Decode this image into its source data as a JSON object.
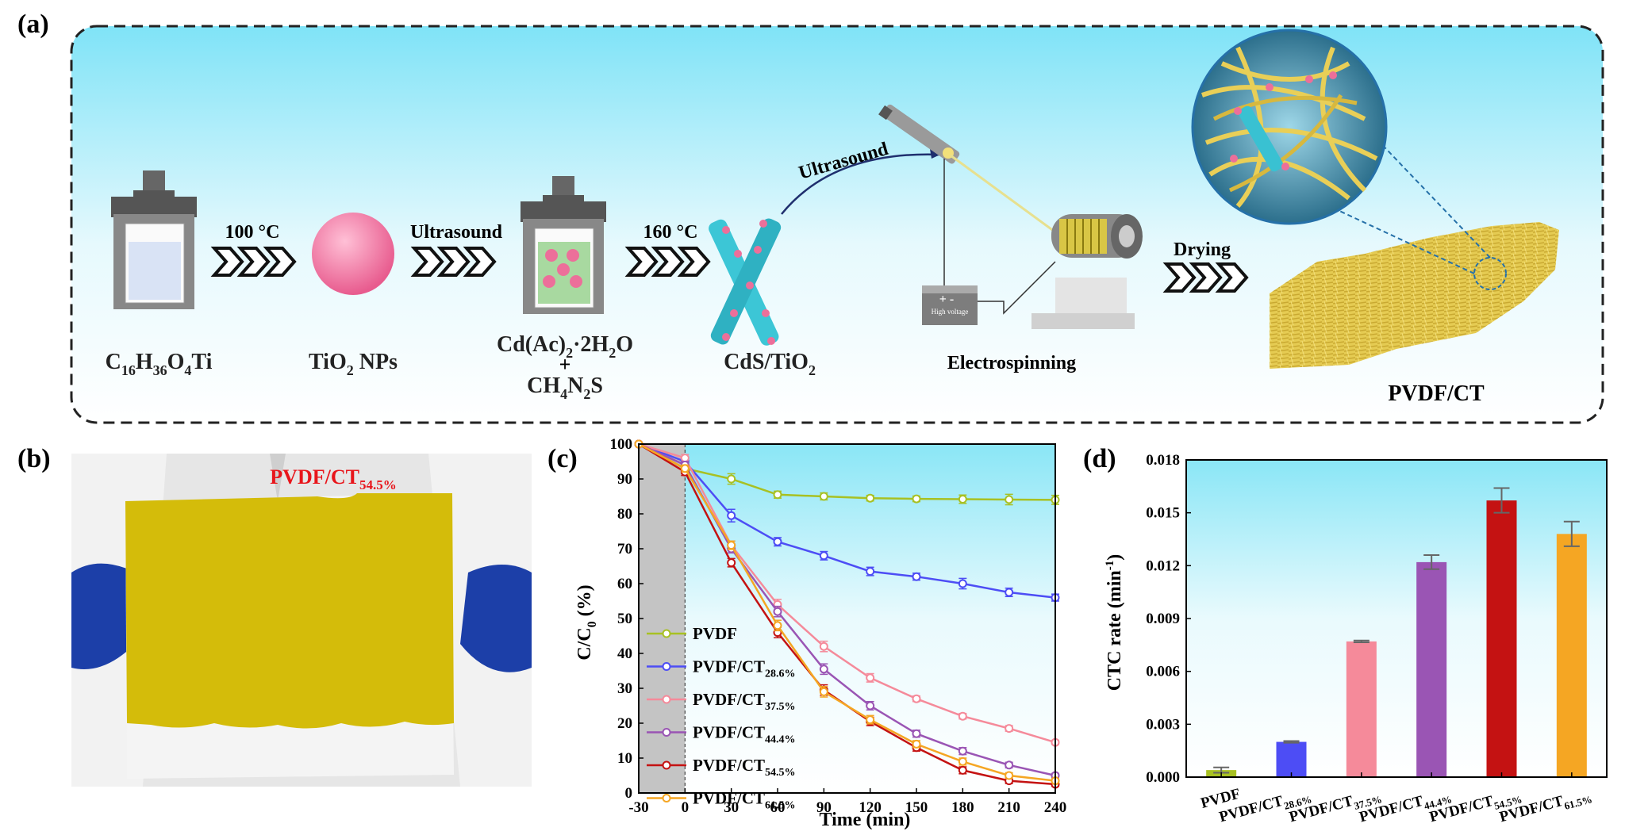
{
  "panels": {
    "a": "(a)",
    "b": "(b)",
    "c": "(c)",
    "d": "(d)"
  },
  "schematic": {
    "precursor": {
      "base": "C",
      "s1": "16",
      "m1": "H",
      "s2": "36",
      "m2": "O",
      "s3": "4",
      "m3": "Ti"
    },
    "step1_temp": "100 °C",
    "tio2": {
      "base": "TiO",
      "sub": "2",
      "tail": " NPs"
    },
    "step2_label": "Ultrasound",
    "reagent1": {
      "base": "Cd(Ac)",
      "sub": "2",
      "tail": "·2H",
      "sub2": "2",
      "tail2": "O"
    },
    "plus": "+",
    "reagent2": {
      "base": "CH",
      "sub": "4",
      "m1": "N",
      "sub2": "2",
      "m2": "S"
    },
    "step3_temp": "160 °C",
    "cds": {
      "base": "CdS/TiO",
      "sub": "2"
    },
    "arc_label": "Ultrasound",
    "power_label": "High voltage",
    "power_signs": "+ -",
    "electrospinning": "Electrospinning",
    "drying": "Drying",
    "product": "PVDF/CT"
  },
  "photo": {
    "label_base": "PVDF/CT",
    "label_sub": "54.5%",
    "label_color": "#e8151b",
    "membrane_color": "#d4bc0a",
    "glove_color": "#1c3fa8"
  },
  "chart_data": [
    {
      "type": "line",
      "xlabel": "Time (min)",
      "ylabel_base": "C/C",
      "ylabel_sub": "0",
      "ylabel_tail": " (%)",
      "xlim": [
        -30,
        240
      ],
      "ylim": [
        0,
        100
      ],
      "xticks": [
        "-30",
        "0",
        "30",
        "60",
        "90",
        "120",
        "150",
        "180",
        "210",
        "240"
      ],
      "yticks": [
        "0",
        "10",
        "20",
        "30",
        "40",
        "50",
        "60",
        "70",
        "80",
        "90",
        "100"
      ],
      "dark_region": [
        -30,
        0
      ],
      "x": [
        -30,
        0,
        30,
        60,
        90,
        120,
        150,
        180,
        210,
        240
      ],
      "series": [
        {
          "name": "PVDF",
          "name_sub": "",
          "color": "#a8c123",
          "values": [
            100,
            93,
            90,
            85.5,
            85,
            84.5,
            84.3,
            84.2,
            84.1,
            84
          ],
          "err": [
            0,
            1,
            1.5,
            1,
            1,
            0.8,
            0.8,
            1.2,
            1.5,
            1.3
          ]
        },
        {
          "name": "PVDF/CT",
          "name_sub": "28.6%",
          "color": "#4d4df5",
          "values": [
            100,
            95,
            79.5,
            72,
            68,
            63.5,
            62,
            60,
            57.5,
            56
          ],
          "err": [
            0,
            1,
            1.8,
            1.2,
            1.2,
            1.2,
            1,
            1.5,
            1.2,
            1
          ]
        },
        {
          "name": "PVDF/CT",
          "name_sub": "37.5%",
          "color": "#f58a9a",
          "values": [
            100,
            96,
            71,
            54,
            42,
            33,
            27,
            22,
            18.5,
            14.5
          ],
          "err": [
            0,
            1,
            1.2,
            1.5,
            1.5,
            1.2,
            0.8,
            0.8,
            0.8,
            0.6
          ]
        },
        {
          "name": "PVDF/CT",
          "name_sub": "44.4%",
          "color": "#9a55b4",
          "values": [
            100,
            94,
            70,
            52,
            35.5,
            25,
            17,
            12,
            8,
            5
          ],
          "err": [
            0,
            1,
            1.2,
            1.5,
            1.5,
            1.2,
            1,
            1,
            0.8,
            0.6
          ]
        },
        {
          "name": "PVDF/CT",
          "name_sub": "54.5%",
          "color": "#c41212",
          "values": [
            100,
            92,
            66,
            46,
            29.5,
            20.5,
            13,
            6.5,
            3.5,
            2.5
          ],
          "err": [
            0,
            1,
            1.2,
            1.5,
            1.5,
            1.2,
            1,
            1,
            0.8,
            0.6
          ]
        },
        {
          "name": "PVDF/CT",
          "name_sub": "61.5%",
          "color": "#f5a623",
          "values": [
            100,
            93,
            71,
            48,
            29,
            21,
            14,
            9,
            5,
            3.5
          ],
          "err": [
            0,
            1,
            1.2,
            1.5,
            1.5,
            1.2,
            1,
            1,
            0.8,
            0.6
          ]
        }
      ]
    },
    {
      "type": "bar",
      "ylabel_base": "CTC rate (min",
      "ylabel_sup": "-1",
      "ylabel_tail": ")",
      "ylim": [
        0,
        0.018
      ],
      "yticks": [
        "0.000",
        "0.003",
        "0.006",
        "0.009",
        "0.012",
        "0.015",
        "0.018"
      ],
      "categories": [
        {
          "base": "PVDF",
          "sub": ""
        },
        {
          "base": "PVDF/CT",
          "sub": "28.6%"
        },
        {
          "base": "PVDF/CT",
          "sub": "37.5%"
        },
        {
          "base": "PVDF/CT",
          "sub": "44.4%"
        },
        {
          "base": "PVDF/CT",
          "sub": "54.5%"
        },
        {
          "base": "PVDF/CT",
          "sub": "61.5%"
        }
      ],
      "values": [
        0.0004,
        0.002,
        0.0077,
        0.0122,
        0.0157,
        0.0138
      ],
      "errors": [
        0.00015,
        5e-05,
        5e-05,
        0.0004,
        0.0007,
        0.0007
      ],
      "colors": [
        "#a8c123",
        "#4d4df5",
        "#f58a9a",
        "#9a55b4",
        "#c41212",
        "#f5a623"
      ]
    }
  ]
}
